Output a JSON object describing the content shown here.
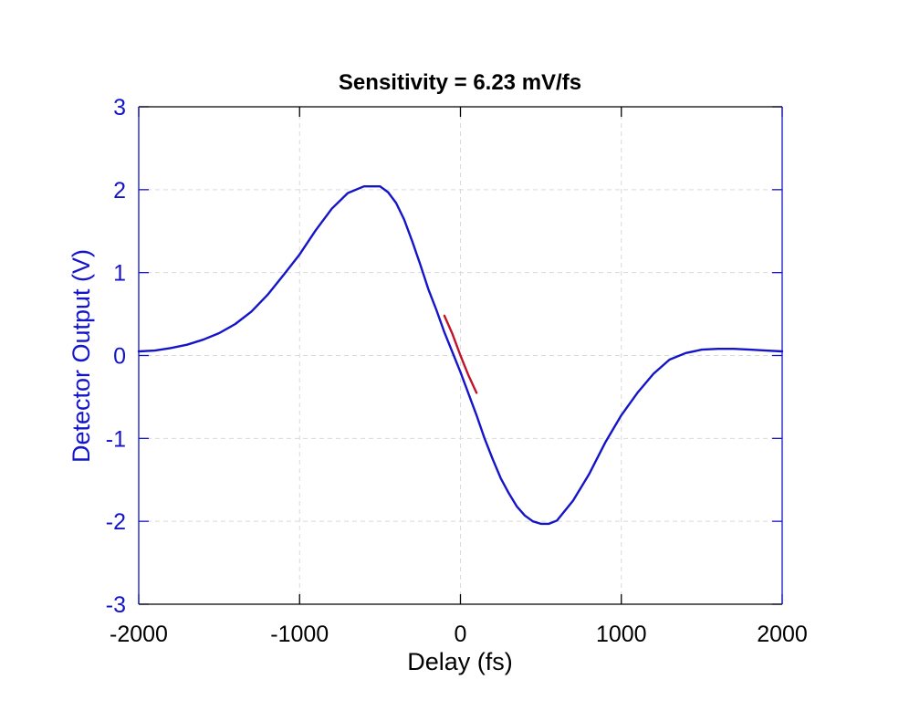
{
  "chart_data": {
    "type": "line",
    "title": "Sensitivity =  6.23 mV/fs",
    "xlabel": "Delay (fs)",
    "ylabel": "Detector Output (V)",
    "xlim": [
      -2000,
      2000
    ],
    "ylim": [
      -3,
      3
    ],
    "xticks": [
      -2000,
      -1000,
      0,
      1000,
      2000
    ],
    "yticks": [
      -3,
      -2,
      -1,
      0,
      1,
      2,
      3
    ],
    "xtick_labels": [
      "-2000",
      "-1000",
      "0",
      "1000",
      "2000"
    ],
    "ytick_labels": [
      "-3",
      "-2",
      "-1",
      "0",
      "1",
      "2",
      "3"
    ],
    "grid": true,
    "colors": {
      "series": "#1414c8",
      "highlight": "#c0142a",
      "axis_y": "#1414c8",
      "axis_x": "#000000",
      "grid": "#d9d9d9"
    },
    "series": [
      {
        "x": [
          -2000,
          -1900,
          -1800,
          -1700,
          -1600,
          -1500,
          -1400,
          -1300,
          -1200,
          -1100,
          -1000,
          -900,
          -800,
          -700,
          -600,
          -500,
          -450,
          -400,
          -350,
          -300,
          -250,
          -200,
          -150,
          -100,
          0,
          100,
          150,
          200,
          250,
          300,
          350,
          400,
          450,
          500,
          550,
          600,
          700,
          800,
          900,
          1000,
          1100,
          1200,
          1300,
          1400,
          1500,
          1600,
          1700,
          1800,
          1900,
          2000
        ],
        "y": [
          0.05,
          0.06,
          0.09,
          0.13,
          0.19,
          0.27,
          0.38,
          0.53,
          0.73,
          0.97,
          1.22,
          1.51,
          1.77,
          1.96,
          2.04,
          2.04,
          1.97,
          1.84,
          1.64,
          1.38,
          1.1,
          0.8,
          0.55,
          0.28,
          -0.2,
          -0.72,
          -1.0,
          -1.25,
          -1.48,
          -1.66,
          -1.82,
          -1.93,
          -2.0,
          -2.03,
          -2.03,
          -1.99,
          -1.75,
          -1.43,
          -1.05,
          -0.72,
          -0.45,
          -0.22,
          -0.05,
          0.03,
          0.07,
          0.08,
          0.08,
          0.07,
          0.06,
          0.05
        ]
      },
      {
        "x": [
          -100,
          -50,
          0,
          50,
          100
        ],
        "y": [
          0.48,
          0.26,
          0.0,
          -0.24,
          -0.45
        ]
      }
    ]
  }
}
